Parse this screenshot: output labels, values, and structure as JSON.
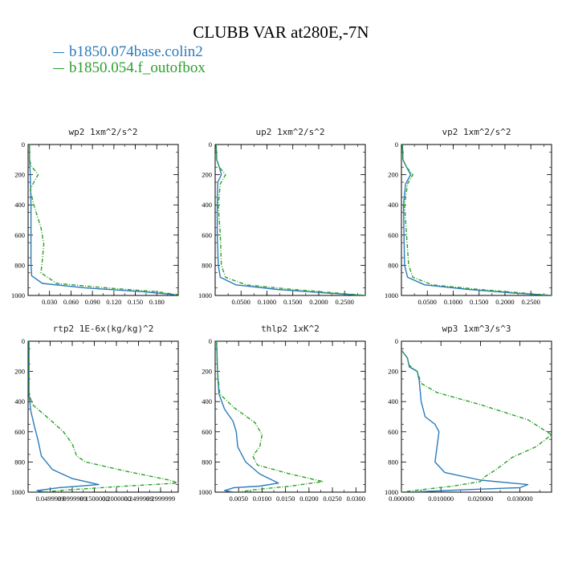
{
  "title": "CLUBB VAR at280E,-7N",
  "legend": [
    {
      "label": "b1850.074base.colin2",
      "color": "#2b7bba",
      "dash": "solid"
    },
    {
      "label": "b1850.054.f_outofbox",
      "color": "#2ca02c",
      "dash": "dashed"
    }
  ],
  "chart_data": [
    {
      "type": "line",
      "title": "wp2  1xm^2/s^2",
      "xlim": [
        0,
        0.21
      ],
      "ylim": [
        1000,
        0
      ],
      "x_ticks": [
        "0.030",
        "0.060",
        "0.090",
        "0.120",
        "0.150",
        "0.180"
      ],
      "x_tick_values": [
        0.03,
        0.06,
        0.09,
        0.12,
        0.15,
        0.18
      ],
      "y_ticks": [
        "0",
        "200",
        "400",
        "600",
        "800",
        "1000"
      ],
      "y_tick_values": [
        0,
        200,
        400,
        600,
        800,
        1000
      ],
      "series": [
        {
          "name": "b1850.074base.colin2",
          "points": [
            [
              0.002,
              0
            ],
            [
              0.002,
              100
            ],
            [
              0.003,
              200
            ],
            [
              0.004,
              400
            ],
            [
              0.004,
              600
            ],
            [
              0.004,
              800
            ],
            [
              0.005,
              870
            ],
            [
              0.02,
              920
            ],
            [
              0.08,
              950
            ],
            [
              0.16,
              975
            ],
            [
              0.205,
              995
            ]
          ]
        },
        {
          "name": "b1850.054.f_outofbox",
          "points": [
            [
              0.002,
              0
            ],
            [
              0.002,
              100
            ],
            [
              0.004,
              140
            ],
            [
              0.014,
              200
            ],
            [
              0.008,
              250
            ],
            [
              0.003,
              300
            ],
            [
              0.008,
              400
            ],
            [
              0.018,
              550
            ],
            [
              0.022,
              660
            ],
            [
              0.02,
              760
            ],
            [
              0.018,
              850
            ],
            [
              0.04,
              920
            ],
            [
              0.11,
              950
            ],
            [
              0.18,
              975
            ],
            [
              0.21,
              995
            ]
          ]
        }
      ]
    },
    {
      "type": "line",
      "title": "up2  1xm^2/s^2",
      "xlim": [
        0,
        0.29
      ],
      "ylim": [
        1000,
        0
      ],
      "x_ticks": [
        "0.0500",
        "0.1000",
        "0.1500",
        "0.2000",
        "0.2500"
      ],
      "x_tick_values": [
        0.05,
        0.1,
        0.15,
        0.2,
        0.25
      ],
      "y_ticks": [
        "0",
        "200",
        "400",
        "600",
        "800",
        "1000"
      ],
      "y_tick_values": [
        0,
        200,
        400,
        600,
        800,
        1000
      ],
      "series": [
        {
          "name": "b1850.074base.colin2",
          "points": [
            [
              0.002,
              0
            ],
            [
              0.003,
              100
            ],
            [
              0.008,
              150
            ],
            [
              0.012,
              200
            ],
            [
              0.005,
              250
            ],
            [
              0.004,
              400
            ],
            [
              0.004,
              600
            ],
            [
              0.006,
              800
            ],
            [
              0.01,
              880
            ],
            [
              0.04,
              930
            ],
            [
              0.12,
              960
            ],
            [
              0.22,
              985
            ],
            [
              0.29,
              1000
            ]
          ]
        },
        {
          "name": "b1850.054.f_outofbox",
          "points": [
            [
              0.002,
              0
            ],
            [
              0.003,
              100
            ],
            [
              0.008,
              150
            ],
            [
              0.02,
              200
            ],
            [
              0.01,
              260
            ],
            [
              0.006,
              400
            ],
            [
              0.01,
              600
            ],
            [
              0.012,
              800
            ],
            [
              0.02,
              880
            ],
            [
              0.06,
              930
            ],
            [
              0.15,
              960
            ],
            [
              0.24,
              985
            ],
            [
              0.29,
              1000
            ]
          ]
        }
      ]
    },
    {
      "type": "line",
      "title": "vp2  1xm^2/s^2",
      "xlim": [
        0,
        0.29
      ],
      "ylim": [
        1000,
        0
      ],
      "x_ticks": [
        "0.0500",
        "0.1000",
        "0.1500",
        "0.2000",
        "0.2500"
      ],
      "x_tick_values": [
        0.05,
        0.1,
        0.15,
        0.2,
        0.25
      ],
      "y_ticks": [
        "0",
        "200",
        "400",
        "600",
        "800",
        "1000"
      ],
      "y_tick_values": [
        0,
        200,
        400,
        600,
        800,
        1000
      ],
      "series": [
        {
          "name": "b1850.074base.colin2",
          "points": [
            [
              0.002,
              0
            ],
            [
              0.003,
              100
            ],
            [
              0.01,
              150
            ],
            [
              0.018,
              200
            ],
            [
              0.008,
              260
            ],
            [
              0.004,
              400
            ],
            [
              0.005,
              600
            ],
            [
              0.006,
              800
            ],
            [
              0.012,
              880
            ],
            [
              0.045,
              930
            ],
            [
              0.13,
              960
            ],
            [
              0.22,
              985
            ],
            [
              0.29,
              1000
            ]
          ]
        },
        {
          "name": "b1850.054.f_outofbox",
          "points": [
            [
              0.002,
              0
            ],
            [
              0.003,
              100
            ],
            [
              0.01,
              150
            ],
            [
              0.022,
              200
            ],
            [
              0.012,
              260
            ],
            [
              0.006,
              400
            ],
            [
              0.01,
              600
            ],
            [
              0.014,
              800
            ],
            [
              0.022,
              880
            ],
            [
              0.06,
              930
            ],
            [
              0.15,
              960
            ],
            [
              0.24,
              985
            ],
            [
              0.29,
              1000
            ]
          ]
        }
      ]
    },
    {
      "type": "line",
      "title": "rtp2  1E-6x(kg/kg)^2",
      "xlim": [
        0,
        0.34
      ],
      "ylim": [
        1000,
        0
      ],
      "x_ticks": [
        "0.0499999",
        "0.0999999",
        "0.1500000",
        "0.2000000",
        "0.2499999",
        "0.2999999"
      ],
      "x_tick_values": [
        0.05,
        0.1,
        0.15,
        0.2,
        0.25,
        0.3
      ],
      "y_ticks": [
        "0",
        "200",
        "400",
        "600",
        "800",
        "1000"
      ],
      "y_tick_values": [
        0,
        200,
        400,
        600,
        800,
        1000
      ],
      "series": [
        {
          "name": "b1850.074base.colin2",
          "points": [
            [
              0.002,
              0
            ],
            [
              0.002,
              350
            ],
            [
              0.006,
              460
            ],
            [
              0.014,
              560
            ],
            [
              0.022,
              650
            ],
            [
              0.03,
              760
            ],
            [
              0.055,
              850
            ],
            [
              0.1,
              910
            ],
            [
              0.16,
              950
            ],
            [
              0.07,
              970
            ],
            [
              0.02,
              990
            ],
            [
              0.04,
              1000
            ]
          ]
        },
        {
          "name": "b1850.054.f_outofbox",
          "points": [
            [
              0.002,
              0
            ],
            [
              0.002,
              350
            ],
            [
              0.01,
              420
            ],
            [
              0.05,
              520
            ],
            [
              0.08,
              600
            ],
            [
              0.1,
              680
            ],
            [
              0.11,
              760
            ],
            [
              0.13,
              800
            ],
            [
              0.22,
              860
            ],
            [
              0.32,
              920
            ],
            [
              0.34,
              940
            ],
            [
              0.22,
              960
            ],
            [
              0.09,
              985
            ],
            [
              0.03,
              1000
            ]
          ]
        }
      ]
    },
    {
      "type": "line",
      "title": "thlp2  1xK^2",
      "xlim": [
        0,
        0.032
      ],
      "ylim": [
        1000,
        0
      ],
      "x_ticks": [
        "0.0050",
        "0.0100",
        "0.0150",
        "0.0200",
        "0.0250",
        "0.0300"
      ],
      "x_tick_values": [
        0.005,
        0.01,
        0.015,
        0.02,
        0.025,
        0.03
      ],
      "y_ticks": [
        "0",
        "200",
        "400",
        "600",
        "800",
        "1000"
      ],
      "y_tick_values": [
        0,
        200,
        400,
        600,
        800,
        1000
      ],
      "series": [
        {
          "name": "b1850.074base.colin2",
          "points": [
            [
              0.0003,
              0
            ],
            [
              0.0005,
              200
            ],
            [
              0.0008,
              350
            ],
            [
              0.002,
              450
            ],
            [
              0.0038,
              530
            ],
            [
              0.0045,
              600
            ],
            [
              0.0048,
              700
            ],
            [
              0.0065,
              800
            ],
            [
              0.0095,
              880
            ],
            [
              0.0135,
              940
            ],
            [
              0.0095,
              960
            ],
            [
              0.004,
              970
            ],
            [
              0.002,
              990
            ],
            [
              0.004,
              1000
            ]
          ]
        },
        {
          "name": "b1850.054.f_outofbox",
          "points": [
            [
              0.0003,
              0
            ],
            [
              0.0005,
              200
            ],
            [
              0.001,
              350
            ],
            [
              0.004,
              440
            ],
            [
              0.0085,
              540
            ],
            [
              0.01,
              620
            ],
            [
              0.0095,
              700
            ],
            [
              0.008,
              760
            ],
            [
              0.009,
              820
            ],
            [
              0.016,
              880
            ],
            [
              0.023,
              930
            ],
            [
              0.016,
              960
            ],
            [
              0.008,
              985
            ],
            [
              0.005,
              1000
            ]
          ]
        }
      ]
    },
    {
      "type": "line",
      "title": "wp3  1xm^3/s^3",
      "xlim": [
        0,
        0.038
      ],
      "ylim": [
        1000,
        0
      ],
      "x_ticks": [
        "0.000000",
        "0.010000",
        "0.020000",
        "0.030000"
      ],
      "x_tick_values": [
        0.0,
        0.01,
        0.02,
        0.03
      ],
      "y_ticks": [
        "0",
        "200",
        "400",
        "600",
        "800",
        "1000"
      ],
      "y_tick_values": [
        0,
        200,
        400,
        600,
        800,
        1000
      ],
      "series": [
        {
          "name": "b1850.074base.colin2",
          "points": [
            [
              0.0,
              60
            ],
            [
              0.0015,
              110
            ],
            [
              0.002,
              170
            ],
            [
              0.004,
              200
            ],
            [
              0.0045,
              260
            ],
            [
              0.005,
              400
            ],
            [
              0.006,
              500
            ],
            [
              0.0085,
              550
            ],
            [
              0.0095,
              600
            ],
            [
              0.009,
              700
            ],
            [
              0.0085,
              800
            ],
            [
              0.011,
              870
            ],
            [
              0.02,
              920
            ],
            [
              0.032,
              950
            ],
            [
              0.03,
              970
            ],
            [
              0.015,
              985
            ],
            [
              0.002,
              1000
            ]
          ]
        },
        {
          "name": "b1850.054.f_outofbox",
          "points": [
            [
              0.0,
              60
            ],
            [
              0.0015,
              110
            ],
            [
              0.002,
              160
            ],
            [
              0.004,
              200
            ],
            [
              0.005,
              280
            ],
            [
              0.009,
              340
            ],
            [
              0.02,
              420
            ],
            [
              0.032,
              520
            ],
            [
              0.038,
              620
            ],
            [
              0.034,
              700
            ],
            [
              0.028,
              770
            ],
            [
              0.024,
              850
            ],
            [
              0.021,
              900
            ],
            [
              0.02,
              930
            ],
            [
              0.013,
              960
            ],
            [
              0.003,
              990
            ],
            [
              0.0,
              1000
            ]
          ]
        }
      ]
    }
  ]
}
